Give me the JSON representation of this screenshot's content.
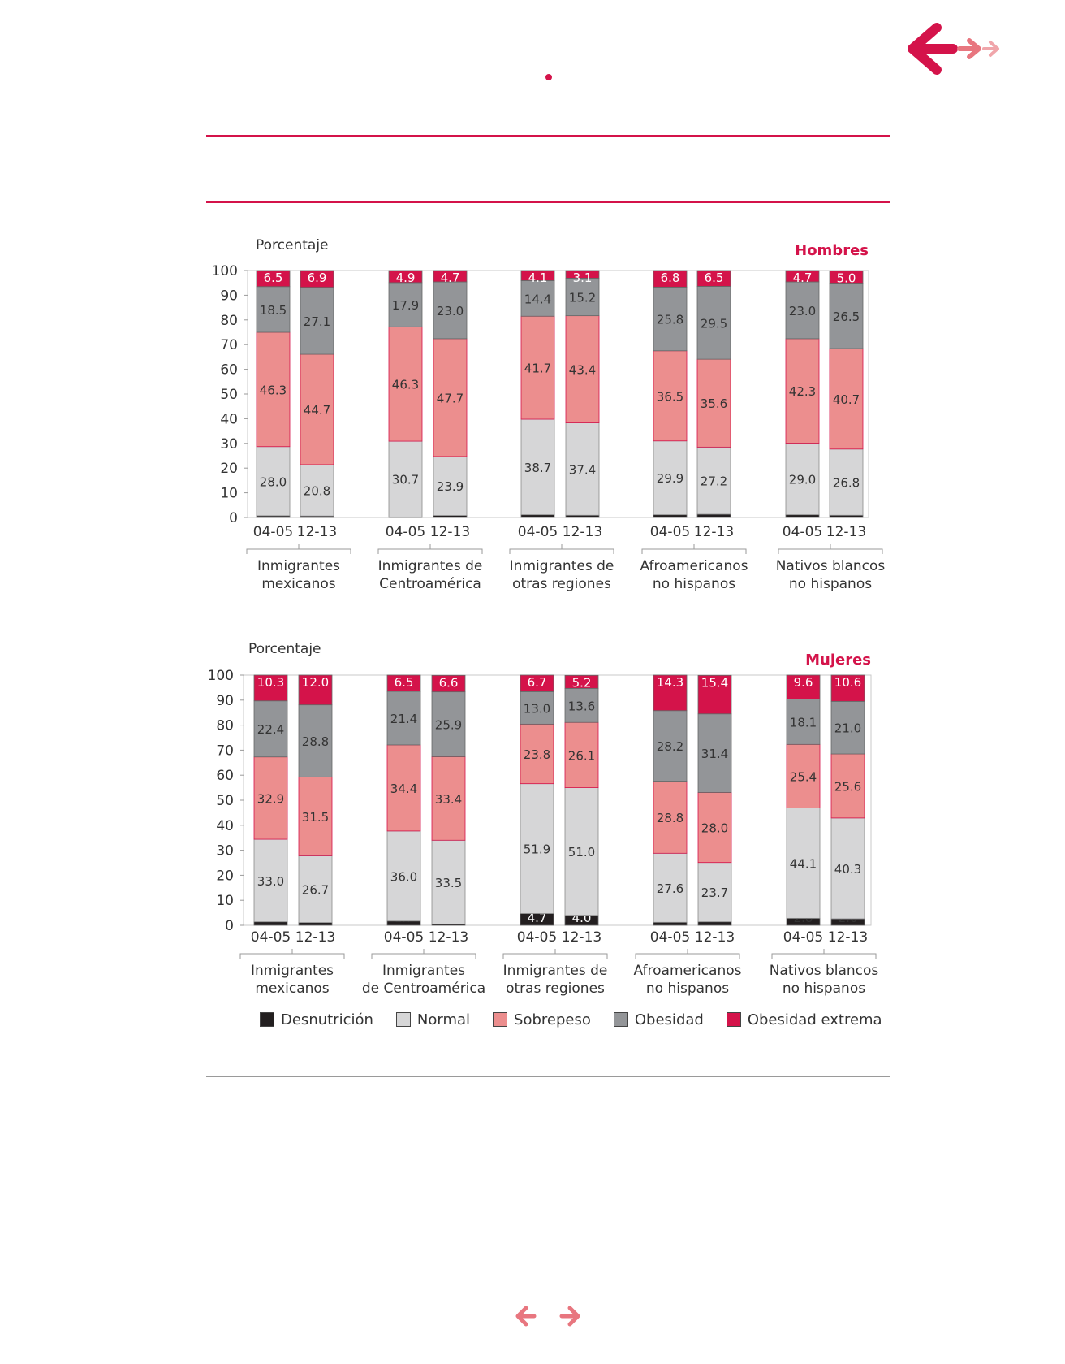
{
  "colors": {
    "accent": "#d4134a",
    "nav_light": "#e8767f",
    "nav_lighter": "#f0a5aa",
    "desnutricion": "#231f20",
    "normal": "#d6d6d7",
    "sobrepeso": "#ec8e8e",
    "obesidad": "#939598",
    "obesidad_extrema": "#d4134a",
    "axis": "#9a9a9a"
  },
  "legend": [
    {
      "key": "desnutricion",
      "label": "Desnutrición"
    },
    {
      "key": "normal",
      "label": "Normal"
    },
    {
      "key": "sobrepeso",
      "label": "Sobrepeso"
    },
    {
      "key": "obesidad",
      "label": "Obesidad"
    },
    {
      "key": "obesidad_extrema",
      "label": "Obesidad extrema"
    }
  ],
  "chart_data": [
    {
      "type": "bar",
      "stacked": true,
      "title": "Hombres",
      "ylabel": "Porcentaje",
      "ylim": [
        0,
        100
      ],
      "yticks": [
        0,
        10,
        20,
        30,
        40,
        50,
        60,
        70,
        80,
        90,
        100
      ],
      "group_labels": [
        [
          "Inmigrantes",
          "mexicanos"
        ],
        [
          "Inmigrantes de",
          "Centroamérica"
        ],
        [
          "Inmigrantes de",
          "otras regiones"
        ],
        [
          "Afroamericanos",
          "no hispanos"
        ],
        [
          "Nativos blancos",
          "no hispanos"
        ]
      ],
      "periods": [
        "04-05",
        "12-13"
      ],
      "series": [
        {
          "name": "Desnutrición",
          "key": "desnutricion",
          "values": [
            [
              0.7,
              0.6
            ],
            [
              0.2,
              0.8
            ],
            [
              1.1,
              0.9
            ],
            [
              1.1,
              1.3
            ],
            [
              1.1,
              0.9
            ]
          ]
        },
        {
          "name": "Normal",
          "key": "normal",
          "values": [
            [
              28.0,
              20.8
            ],
            [
              30.7,
              23.9
            ],
            [
              38.7,
              37.4
            ],
            [
              29.9,
              27.2
            ],
            [
              29.0,
              26.8
            ]
          ]
        },
        {
          "name": "Sobrepeso",
          "key": "sobrepeso",
          "values": [
            [
              46.3,
              44.7
            ],
            [
              46.3,
              47.7
            ],
            [
              41.7,
              43.4
            ],
            [
              36.5,
              35.6
            ],
            [
              42.3,
              40.7
            ]
          ]
        },
        {
          "name": "Obesidad",
          "key": "obesidad",
          "values": [
            [
              18.5,
              27.1
            ],
            [
              17.9,
              23.0
            ],
            [
              14.4,
              15.2
            ],
            [
              25.8,
              29.5
            ],
            [
              23.0,
              26.5
            ]
          ]
        },
        {
          "name": "Obesidad extrema",
          "key": "obesidad_extrema",
          "values": [
            [
              6.5,
              6.9
            ],
            [
              4.9,
              4.7
            ],
            [
              4.1,
              3.1
            ],
            [
              6.8,
              6.5
            ],
            [
              4.7,
              5.0
            ]
          ]
        }
      ]
    },
    {
      "type": "bar",
      "stacked": true,
      "title": "Mujeres",
      "ylabel": "Porcentaje",
      "ylim": [
        0,
        100
      ],
      "yticks": [
        0,
        10,
        20,
        30,
        40,
        50,
        60,
        70,
        80,
        90,
        100
      ],
      "group_labels": [
        [
          "Inmigrantes",
          "mexicanos"
        ],
        [
          "Inmigrantes",
          "de Centroamérica"
        ],
        [
          "Inmigrantes de",
          "otras regiones"
        ],
        [
          "Afroamericanos",
          "no hispanos"
        ],
        [
          "Nativos blancos",
          "no hispanos"
        ]
      ],
      "periods": [
        "04-05",
        "12-13"
      ],
      "series": [
        {
          "name": "Desnutrición",
          "key": "desnutricion",
          "values": [
            [
              1.4,
              1.1
            ],
            [
              1.7,
              0.5
            ],
            [
              4.7,
              4.0
            ],
            [
              1.2,
              1.4
            ],
            [
              2.8,
              2.6
            ]
          ]
        },
        {
          "name": "Normal",
          "key": "normal",
          "values": [
            [
              33.0,
              26.7
            ],
            [
              36.0,
              33.5
            ],
            [
              51.9,
              51.0
            ],
            [
              27.6,
              23.7
            ],
            [
              44.1,
              40.3
            ]
          ]
        },
        {
          "name": "Sobrepeso",
          "key": "sobrepeso",
          "values": [
            [
              32.9,
              31.5
            ],
            [
              34.4,
              33.4
            ],
            [
              23.8,
              26.1
            ],
            [
              28.8,
              28.0
            ],
            [
              25.4,
              25.6
            ]
          ]
        },
        {
          "name": "Obesidad",
          "key": "obesidad",
          "values": [
            [
              22.4,
              28.8
            ],
            [
              21.4,
              25.9
            ],
            [
              13.0,
              13.6
            ],
            [
              28.2,
              31.4
            ],
            [
              18.1,
              21.0
            ]
          ]
        },
        {
          "name": "Obesidad extrema",
          "key": "obesidad_extrema",
          "values": [
            [
              10.3,
              12.0
            ],
            [
              6.5,
              6.6
            ],
            [
              6.7,
              5.2
            ],
            [
              14.3,
              15.4
            ],
            [
              9.6,
              10.6
            ]
          ]
        }
      ]
    }
  ]
}
